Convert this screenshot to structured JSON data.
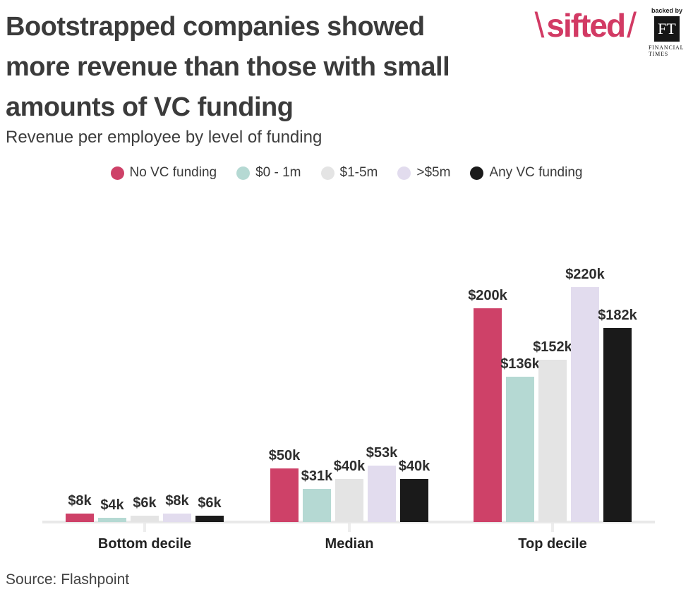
{
  "header": {
    "title_lines": [
      "Bootstrapped companies showed",
      "more revenue than those with small",
      "amounts of VC funding"
    ],
    "subtitle": "Revenue per employee by level of funding"
  },
  "logo": {
    "backslash": "\\",
    "brand": "sifted",
    "slash": "/",
    "brand_color": "#d23a64",
    "backed_by": "backed by",
    "ft_initials": "FT",
    "ft_name_line1": "FINANCIAL",
    "ft_name_line2": "TIMES"
  },
  "legend": {
    "items": [
      {
        "label": "No VC funding",
        "color": "#ce4168"
      },
      {
        "label": "$0 - 1m",
        "color": "#b5d9d3"
      },
      {
        "label": "$1-5m",
        "color": "#e4e4e4"
      },
      {
        "label": ">$5m",
        "color": "#e2dcee"
      },
      {
        "label": "Any VC funding",
        "color": "#1a1a1a"
      }
    ]
  },
  "chart_data": {
    "type": "bar",
    "title": "Bootstrapped companies showed more revenue than those with small amounts of VC funding",
    "subtitle": "Revenue per employee by level of funding",
    "categories": [
      "Bottom decile",
      "Median",
      "Top decile"
    ],
    "series": [
      {
        "name": "No VC funding",
        "color": "#ce4168",
        "values": [
          8,
          50,
          200
        ]
      },
      {
        "name": "$0 - 1m",
        "color": "#b5d9d3",
        "values": [
          4,
          31,
          136
        ]
      },
      {
        "name": "$1-5m",
        "color": "#e4e4e4",
        "values": [
          6,
          40,
          152
        ]
      },
      {
        "name": ">$5m",
        "color": "#e2dcee",
        "values": [
          8,
          53,
          220
        ]
      },
      {
        "name": "Any VC funding",
        "color": "#1a1a1a",
        "values": [
          6,
          40,
          182
        ]
      }
    ],
    "value_labels": [
      [
        "$8k",
        "$4k",
        "$6k",
        "$8k",
        "$6k"
      ],
      [
        "$50k",
        "$31k",
        "$40k",
        "$53k",
        "$40k"
      ],
      [
        "$200k",
        "$136k",
        "$152k",
        "$220k",
        "$182k"
      ]
    ],
    "value_unit_suffix": "k",
    "ylim": [
      0,
      240
    ],
    "grid": false,
    "legend_position": "top"
  },
  "source": "Source: Flashpoint"
}
